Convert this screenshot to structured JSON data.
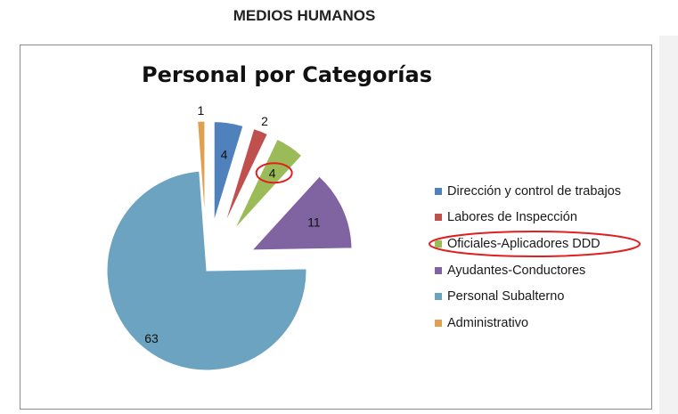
{
  "page": {
    "heading": "MEDIOS HUMANOS"
  },
  "chart_data": {
    "type": "pie",
    "title": "Personal por Categorías",
    "exploded": true,
    "legend_position": "right",
    "slices": [
      {
        "label": "Dirección y control de trabajos",
        "value": 4,
        "color": "#4f81bd"
      },
      {
        "label": "Labores de Inspección",
        "value": 2,
        "color": "#c0504d"
      },
      {
        "label": "Oficiales-Aplicadores DDD",
        "value": 4,
        "color": "#9bbb59"
      },
      {
        "label": "Ayudantes-Conductores",
        "value": 11,
        "color": "#8064a2"
      },
      {
        "label": "Personal Subalterno",
        "value": 63,
        "color": "#6ba3c0"
      },
      {
        "label": "Administrativo",
        "value": 1,
        "color": "#e0a050"
      }
    ],
    "highlight": {
      "label": "Oficiales-Aplicadores DDD",
      "annotation_color": "#e02020"
    }
  }
}
